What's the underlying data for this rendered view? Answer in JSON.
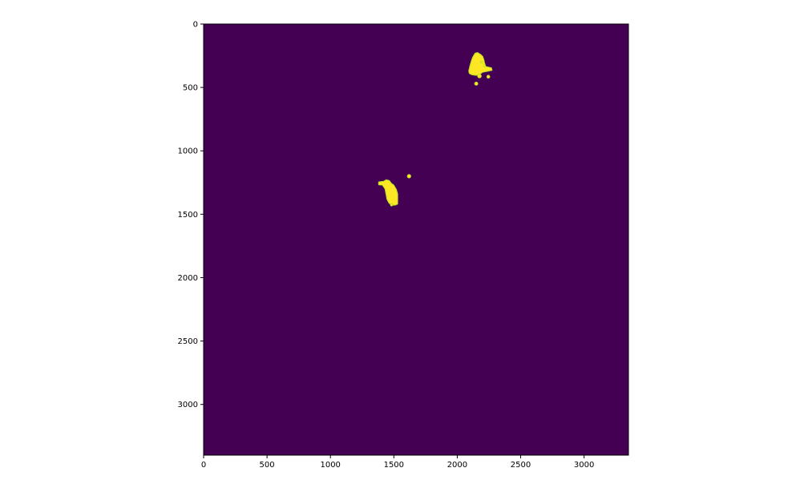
{
  "chart_data": {
    "type": "heatmap",
    "title": "",
    "xlabel": "",
    "ylabel": "",
    "xlim": [
      0,
      3350
    ],
    "ylim": [
      3400,
      0
    ],
    "x_ticks": [
      0,
      500,
      1000,
      1500,
      2000,
      2500,
      3000
    ],
    "y_ticks": [
      0,
      500,
      1000,
      1500,
      2000,
      2500,
      3000
    ],
    "x_tick_labels": [
      "0",
      "500",
      "1000",
      "1500",
      "2000",
      "2500",
      "3000"
    ],
    "y_tick_labels": [
      "0",
      "500",
      "1000",
      "1500",
      "2000",
      "2500",
      "3000"
    ],
    "colormap": "viridis",
    "background_value": 0,
    "background_color": "#440154",
    "foreground_value": 1,
    "foreground_color": "#fde725",
    "edge_color": "#b5de2b",
    "grid": false,
    "regions": [
      {
        "id": "upper-cluster",
        "polygon": [
          [
            2090,
            370
          ],
          [
            2100,
            330
          ],
          [
            2110,
            295
          ],
          [
            2120,
            265
          ],
          [
            2140,
            230
          ],
          [
            2160,
            225
          ],
          [
            2185,
            240
          ],
          [
            2200,
            255
          ],
          [
            2210,
            280
          ],
          [
            2215,
            305
          ],
          [
            2225,
            335
          ],
          [
            2270,
            345
          ],
          [
            2275,
            365
          ],
          [
            2230,
            375
          ],
          [
            2200,
            380
          ],
          [
            2180,
            395
          ],
          [
            2150,
            405
          ],
          [
            2115,
            400
          ],
          [
            2095,
            390
          ]
        ]
      },
      {
        "id": "lower-cluster",
        "polygon": [
          [
            1380,
            1245
          ],
          [
            1420,
            1240
          ],
          [
            1440,
            1228
          ],
          [
            1465,
            1235
          ],
          [
            1480,
            1255
          ],
          [
            1500,
            1270
          ],
          [
            1520,
            1305
          ],
          [
            1530,
            1340
          ],
          [
            1530,
            1420
          ],
          [
            1510,
            1428
          ],
          [
            1480,
            1428
          ],
          [
            1460,
            1410
          ],
          [
            1445,
            1380
          ],
          [
            1440,
            1350
          ],
          [
            1430,
            1300
          ],
          [
            1410,
            1270
          ],
          [
            1380,
            1268
          ]
        ]
      }
    ],
    "blobs": [
      {
        "x": 2175,
        "y": 410,
        "r": 15
      },
      {
        "x": 2245,
        "y": 415,
        "r": 12
      },
      {
        "x": 2150,
        "y": 470,
        "r": 13
      },
      {
        "x": 2190,
        "y": 300,
        "r": 8
      },
      {
        "x": 2215,
        "y": 330,
        "r": 7
      },
      {
        "x": 1620,
        "y": 1200,
        "r": 14
      },
      {
        "x": 1482,
        "y": 1425,
        "r": 10
      }
    ]
  }
}
